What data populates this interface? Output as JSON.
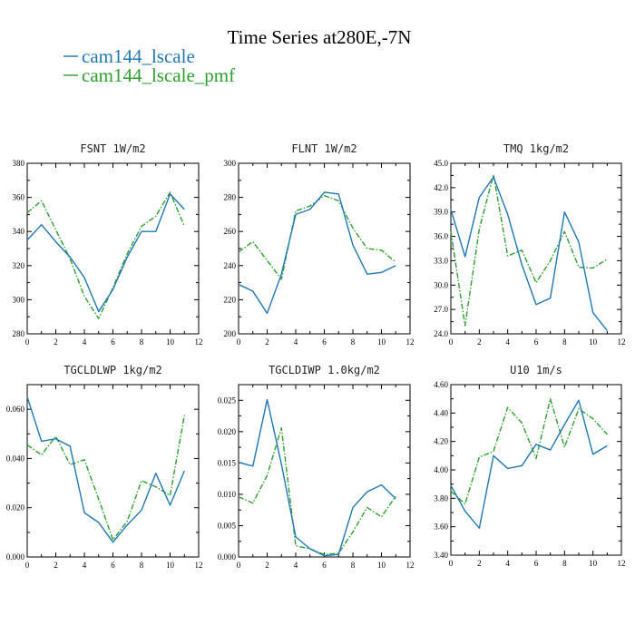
{
  "title": "Time Series at280E,-7N",
  "colors": {
    "s1": "#1f77b4",
    "s2": "#2ca02c"
  },
  "legend": [
    {
      "label": "cam144_lscale",
      "color": "#1f77b4",
      "dash": "solid"
    },
    {
      "label": "cam144_lscale_pmf",
      "color": "#2ca02c",
      "dash": "dashdot"
    }
  ],
  "chart_data": [
    {
      "type": "line",
      "panel_title": "FSNT  1W/m2",
      "xlim": [
        0,
        12
      ],
      "ylim": [
        280,
        380
      ],
      "xticks": [
        0,
        2,
        4,
        6,
        8,
        10,
        12
      ],
      "xtick_labels": [
        "0",
        "2",
        "4",
        "6",
        "8",
        "10",
        "12"
      ],
      "yticks": [
        280,
        300,
        320,
        340,
        360,
        380
      ],
      "ytick_labels": [
        "280",
        "300",
        "320",
        "340",
        "360",
        "380"
      ],
      "x": [
        0,
        1,
        2,
        3,
        4,
        5,
        6,
        7,
        8,
        9,
        10,
        11
      ],
      "series": [
        {
          "values": [
            335,
            344,
            334,
            325,
            313,
            293,
            306,
            325,
            340,
            340,
            362,
            353
          ]
        },
        {
          "values": [
            351,
            358,
            341,
            324,
            302,
            289,
            307,
            327,
            343,
            349,
            363,
            343
          ]
        }
      ]
    },
    {
      "type": "line",
      "panel_title": "FLNT  1W/m2",
      "xlim": [
        0,
        12
      ],
      "ylim": [
        200,
        300
      ],
      "xticks": [
        0,
        2,
        4,
        6,
        8,
        10,
        12
      ],
      "xtick_labels": [
        "0",
        "2",
        "4",
        "6",
        "8",
        "10",
        "12"
      ],
      "yticks": [
        200,
        220,
        240,
        260,
        280,
        300
      ],
      "ytick_labels": [
        "200",
        "220",
        "240",
        "260",
        "280",
        "300"
      ],
      "x": [
        0,
        1,
        2,
        3,
        4,
        5,
        6,
        7,
        8,
        9,
        10,
        11
      ],
      "series": [
        {
          "values": [
            229,
            225,
            212,
            235,
            270,
            273,
            283,
            282,
            252,
            235,
            236,
            240
          ]
        },
        {
          "values": [
            248,
            254,
            243,
            232,
            272,
            275,
            281,
            278,
            262,
            250,
            249,
            242
          ]
        }
      ]
    },
    {
      "type": "line",
      "panel_title": "TMQ  1kg/m2",
      "xlim": [
        0,
        12
      ],
      "ylim": [
        24,
        45
      ],
      "xticks": [
        0,
        2,
        4,
        6,
        8,
        10,
        12
      ],
      "xtick_labels": [
        "0",
        "2",
        "4",
        "6",
        "8",
        "10",
        "12"
      ],
      "yticks": [
        24,
        27,
        30,
        33,
        36,
        39,
        42,
        45
      ],
      "ytick_labels": [
        "24.0",
        "27.0",
        "30.0",
        "33.0",
        "36.0",
        "39.0",
        "42.0",
        "45.0"
      ],
      "x": [
        0,
        1,
        2,
        3,
        4,
        5,
        6,
        7,
        8,
        9,
        10,
        11
      ],
      "series": [
        {
          "values": [
            39.3,
            33.5,
            40.8,
            43.3,
            38.7,
            32.5,
            27.6,
            28.4,
            39.0,
            35.3,
            26.6,
            24.4
          ]
        },
        {
          "values": [
            36.6,
            25.0,
            36.9,
            43.6,
            33.6,
            34.3,
            30.3,
            33.0,
            36.6,
            32.2,
            32.1,
            33.2
          ]
        }
      ]
    },
    {
      "type": "line",
      "panel_title": "TGCLDLWP  1kg/m2",
      "xlim": [
        0,
        12
      ],
      "ylim": [
        0,
        0.07
      ],
      "xticks": [
        0,
        2,
        4,
        6,
        8,
        10,
        12
      ],
      "xtick_labels": [
        "0",
        "2",
        "4",
        "6",
        "8",
        "10",
        "12"
      ],
      "yticks": [
        0,
        0.02,
        0.04,
        0.06
      ],
      "ytick_labels": [
        "0.000",
        "0.020",
        "0.040",
        "0.060"
      ],
      "x": [
        0,
        1,
        2,
        3,
        4,
        5,
        6,
        7,
        8,
        9,
        10,
        11
      ],
      "series": [
        {
          "values": [
            0.065,
            0.047,
            0.048,
            0.045,
            0.018,
            0.014,
            0.006,
            0.013,
            0.019,
            0.034,
            0.021,
            0.035
          ]
        },
        {
          "values": [
            0.0455,
            0.0415,
            0.049,
            0.0375,
            0.0395,
            0.0235,
            0.007,
            0.0145,
            0.031,
            0.0285,
            0.025,
            0.0575
          ]
        }
      ]
    },
    {
      "type": "line",
      "panel_title": "TGCLDIWP  1.0kg/m2",
      "xlim": [
        0,
        12
      ],
      "ylim": [
        0,
        0.0275
      ],
      "xticks": [
        0,
        2,
        4,
        6,
        8,
        10,
        12
      ],
      "xtick_labels": [
        "0",
        "2",
        "4",
        "6",
        "8",
        "10",
        "12"
      ],
      "yticks": [
        0,
        0.005,
        0.01,
        0.015,
        0.02,
        0.025
      ],
      "ytick_labels": [
        "0.000",
        "0.005",
        "0.010",
        "0.015",
        "0.020",
        "0.025"
      ],
      "x": [
        0,
        1,
        2,
        3,
        4,
        5,
        6,
        7,
        8,
        9,
        10,
        11
      ],
      "series": [
        {
          "values": [
            0.0151,
            0.0145,
            0.0251,
            0.0148,
            0.0032,
            0.0013,
            0.0002,
            0.0004,
            0.0079,
            0.0104,
            0.0115,
            0.0093
          ]
        },
        {
          "values": [
            0.0096,
            0.0086,
            0.013,
            0.0206,
            0.0018,
            0.0013,
            0.0004,
            0.0006,
            0.004,
            0.0079,
            0.0064,
            0.0097
          ]
        }
      ]
    },
    {
      "type": "line",
      "panel_title": "U10  1m/s",
      "xlim": [
        0,
        12
      ],
      "ylim": [
        3.4,
        4.6
      ],
      "xticks": [
        0,
        2,
        4,
        6,
        8,
        10,
        12
      ],
      "xtick_labels": [
        "0",
        "2",
        "4",
        "6",
        "8",
        "10",
        "12"
      ],
      "yticks": [
        3.4,
        3.6,
        3.8,
        4.0,
        4.2,
        4.4,
        4.6
      ],
      "ytick_labels": [
        "3.40",
        "3.60",
        "3.80",
        "4.00",
        "4.20",
        "4.40",
        "4.60"
      ],
      "x": [
        0,
        1,
        2,
        3,
        4,
        5,
        6,
        7,
        8,
        9,
        10,
        11
      ],
      "series": [
        {
          "values": [
            3.89,
            3.71,
            3.59,
            4.1,
            4.01,
            4.03,
            4.18,
            4.14,
            4.32,
            4.49,
            4.11,
            4.17
          ]
        },
        {
          "values": [
            3.85,
            3.76,
            4.09,
            4.13,
            4.44,
            4.33,
            4.08,
            4.5,
            4.16,
            4.43,
            4.36,
            4.25
          ]
        }
      ]
    }
  ]
}
